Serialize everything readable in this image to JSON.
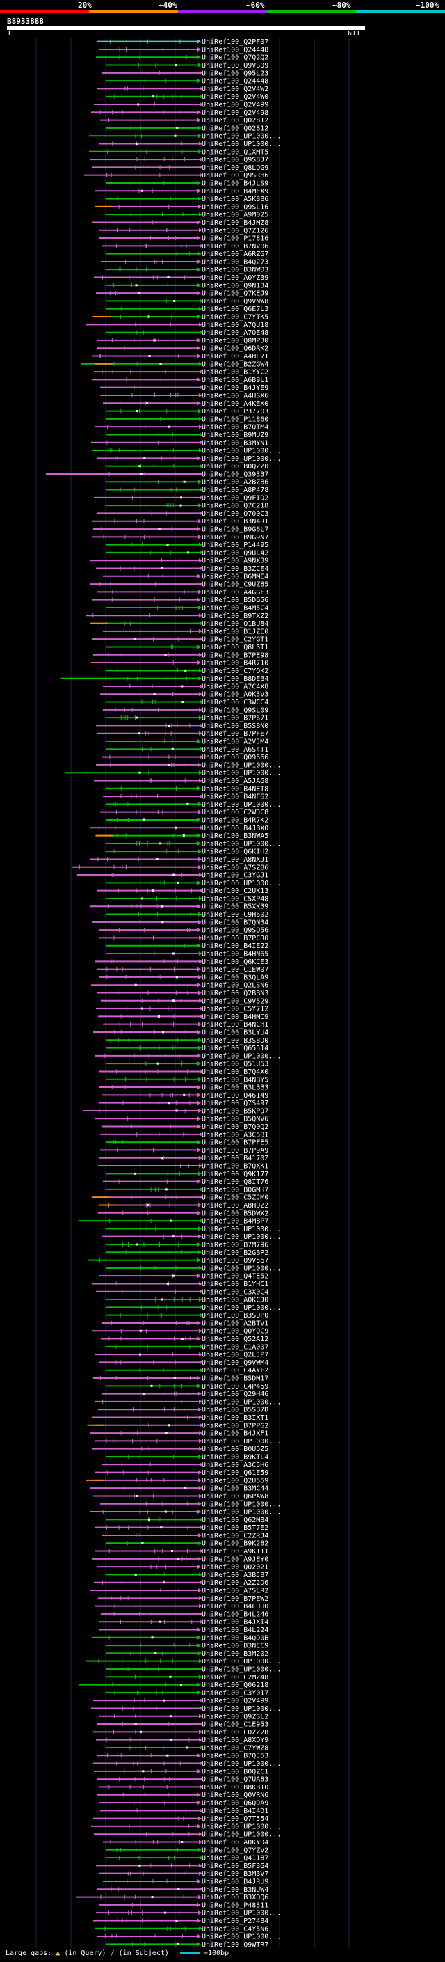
{
  "scale": {
    "ticks": [
      "20%",
      "~40%",
      "~60%",
      "~80%",
      "~100%"
    ],
    "colors": [
      "#ff0000",
      "#ff8c00",
      "#a020f0",
      "#00c000",
      "#00c8c8"
    ]
  },
  "query": {
    "id": "B8933888",
    "start": "1",
    "end": "611"
  },
  "hit_colors": {
    "green": "#00c000",
    "magenta": "#d060d0",
    "cyan": "#40d0d0",
    "orange": "#ff8c00",
    "pink": "#ff80ff"
  },
  "hits": [
    "UniRef100_Q2PF07",
    "UniRef100_Q24448",
    "UniRef100_Q7Q2Q2",
    "UniRef100_Q9VS09",
    "UniRef100_Q95L23",
    "UniRef100_Q24448",
    "UniRef100_Q2V4W2",
    "UniRef100_Q2V4W0",
    "UniRef100_Q2V499",
    "UniRef100_Q2V498",
    "UniRef100_Q02812",
    "UniRef100_Q02812",
    "UniRef100_UP1000...",
    "UniRef100_UP1000...",
    "UniRef100_Q1XMT5",
    "UniRef100_Q9S8J7",
    "UniRef100_Q8LQG9",
    "UniRef100_Q9SRH6",
    "UniRef100_B4JLS9",
    "UniRef100_B4MEX9",
    "UniRef100_A5K8B6",
    "UniRef100_Q9SL16",
    "UniRef100_A9M025",
    "UniRef100_B4JMZ8",
    "UniRef100_Q7Z126",
    "UniRef100_P17816",
    "UniRef100_B7NV06",
    "UniRef100_A6RZG7",
    "UniRef100_B4Q273",
    "UniRef100_B3NWD3",
    "UniRef100_A0YZ39",
    "UniRef100_Q9N134",
    "UniRef100_Q7KEJ9",
    "UniRef100_Q9VNW8",
    "UniRef100_Q6E7L3",
    "UniRef100_C7YTK5",
    "UniRef100_A7QU18",
    "UniRef100_A7QE48",
    "UniRef100_Q8MP30",
    "UniRef100_Q6DRK2",
    "UniRef100_A4HL71",
    "UniRef100_B2ZGW4",
    "UniRef100_B1YYC2",
    "UniRef100_A6B9L1",
    "UniRef100_B4JYE9",
    "UniRef100_A4HSX6",
    "UniRef100_A4KEX0",
    "UniRef100_P37703",
    "UniRef100_P11860",
    "UniRef100_B7QTM4",
    "UniRef100_B9MUZ9",
    "UniRef100_B3MYN1",
    "UniRef100_UP1000...",
    "UniRef100_UP1000...",
    "UniRef100_B0QZZ0",
    "UniRef100_Q39337",
    "UniRef100_A2BZB6",
    "UniRef100_A8P478",
    "UniRef100_Q9FID2",
    "UniRef100_Q7C218",
    "UniRef100_Q700C3",
    "UniRef100_B3N4R1",
    "UniRef100_B9G6L7",
    "UniRef100_B9G9N7",
    "UniRef100_P14495",
    "UniRef100_Q9UL42",
    "UniRef100_A9NX39",
    "UniRef100_B3ZCE4",
    "UniRef100_B6MME4",
    "UniRef100_C9UZ85",
    "UniRef100_A4GGF3",
    "UniRef100_B5DG56",
    "UniRef100_B4M5C4",
    "UniRef100_B9TXZ2",
    "UniRef100_Q1BU84",
    "UniRef100_B1JZE0",
    "UniRef100_C2YGT1",
    "UniRef100_Q8L6T1",
    "UniRef100_B7PE98",
    "UniRef100_B4R710",
    "UniRef100_C7YQK2",
    "UniRef100_B8DEB4",
    "UniRef100_A7C4X8",
    "UniRef100_A0K3V3",
    "UniRef100_C3WCC4",
    "UniRef100_Q9SL09",
    "UniRef100_B7P671",
    "UniRef100_B5S8N0",
    "UniRef100_B7PFE7",
    "UniRef100_A2VJM4",
    "UniRef100_A6S4T1",
    "UniRef100_Q09666",
    "UniRef100_UP1000...",
    "UniRef100_UP1000...",
    "UniRef100_A5JAG8",
    "UniRef100_B4NET8",
    "UniRef100_B4NFG2",
    "UniRef100_UP1000...",
    "UniRef100_C2WDC8",
    "UniRef100_B4R7K2",
    "UniRef100_B4JBX0",
    "UniRef100_B3NWA5",
    "UniRef100_UP1000...",
    "UniRef100_Q6KIH2",
    "UniRef100_A8NXJ1",
    "UniRef100_A7SZ86",
    "UniRef100_C3YGJ1",
    "UniRef100_UP1000...",
    "UniRef100_C2UK13",
    "UniRef100_C5XP48",
    "UniRef100_B5XK39",
    "UniRef100_C9H602",
    "UniRef100_B7QN34",
    "UniRef100_Q9SQ56",
    "UniRef100_B7PCR0",
    "UniRef100_B4IE22",
    "UniRef100_B4HN65",
    "UniRef100_Q6KCE3",
    "UniRef100_C1EW07",
    "UniRef100_B3QLA9",
    "UniRef100_Q2LSN6",
    "UniRef100_Q2BBN3",
    "UniRef100_C9V529",
    "UniRef100_C5Y712",
    "UniRef100_B4HMC9",
    "UniRef100_B4NCH1",
    "UniRef100_B3LYU4",
    "UniRef100_B3S8D0",
    "UniRef100_Q65514",
    "UniRef100_UP1000...",
    "UniRef100_Q51U53",
    "UniRef100_B7Q4X0",
    "UniRef100_B4NBY5",
    "UniRef100_B3LBB3",
    "UniRef100_Q46149",
    "UniRef100_Q7S497",
    "UniRef100_B5KP97",
    "UniRef100_B5QNV6",
    "UniRef100_B7Q0Q2",
    "UniRef100_A3C5B1",
    "UniRef100_B7PFE5",
    "UniRef100_B7P9A9",
    "UniRef100_B4170Z",
    "UniRef100_B7QXK1",
    "UniRef100_Q9K177",
    "UniRef100_Q8IT76",
    "UniRef100_B0GMH7",
    "UniRef100_C5ZJM0",
    "UniRef100_A8HQZ2",
    "UniRef100_B5DWX2",
    "UniRef100_B4MBP7",
    "UniRef100_UP1000...",
    "UniRef100_UP1000...",
    "UniRef100_B7M796",
    "UniRef100_B2GBP2",
    "UniRef100_Q9V567",
    "UniRef100_UP1000...",
    "UniRef100_Q4TE52",
    "UniRef100_B1YHC1",
    "UniRef100_C3X0C4",
    "UniRef100_A0KCJ0",
    "UniRef100_UP1000...",
    "UniRef100_B3SUP0",
    "UniRef100_A2BTV1",
    "UniRef100_Q0YQC9",
    "UniRef100_Q52A12",
    "UniRef100_C1A007",
    "UniRef100_Q2LJP7",
    "UniRef100_Q9VWM4",
    "UniRef100_C4AYF2",
    "UniRef100_B5DM17",
    "UniRef100_C4P459",
    "UniRef100_Q29H46",
    "UniRef100_UP1000...",
    "UniRef100_B5SB7D",
    "UniRef100_B3IXT1",
    "UniRef100_B7PPG2",
    "UniRef100_B4JXF1",
    "UniRef100_UP1000...",
    "UniRef100_B0UDZ5",
    "UniRef100_B9KTL4",
    "UniRef100_A3C5H6",
    "UniRef100_Q61E59",
    "UniRef100_Q2U559",
    "UniRef100_B3MC44",
    "UniRef100_Q6PAW8",
    "UniRef100_UP1000...",
    "UniRef100_UP1000...",
    "UniRef100_Q62M84",
    "UniRef100_B5T7E2",
    "UniRef100_C2ZRJ4",
    "UniRef100_B9K282",
    "UniRef100_A9K111",
    "UniRef100_A9JEY0",
    "UniRef100_Q02021",
    "UniRef100_A3BJB7",
    "UniRef100_A2Z2D6",
    "UniRef100_A7SLR2",
    "UniRef100_B7PEW2",
    "UniRef100_B4LUU0",
    "UniRef100_B4L246",
    "UniRef100_B4JXI4",
    "UniRef100_B4L224",
    "UniRef100_B4QD0B",
    "UniRef100_B3NEC9",
    "UniRef100_B3M202",
    "UniRef100_UP1000...",
    "UniRef100_UP1000...",
    "UniRef100_C2MZ48",
    "UniRef100_Q06218",
    "UniRef100_C3Y017",
    "UniRef100_Q2V499",
    "UniRef100_UP1000...",
    "UniRef100_Q9ZSL2",
    "UniRef100_C1E953",
    "UniRef100_C0ZZ28",
    "UniRef100_A8XDY9",
    "UniRef100_C7YWZ8",
    "UniRef100_B7QJ53",
    "UniRef100_UP1000...",
    "UniRef100_B0QZC1",
    "UniRef100_Q7UA83",
    "UniRef100_B8KB10",
    "UniRef100_Q0VRN6",
    "UniRef100_Q6QDA9",
    "UniRef100_B4I4D1",
    "UniRef100_Q7T554",
    "UniRef100_UP1000...",
    "UniRef100_UP1000...",
    "UniRef100_A0KYD4",
    "UniRef100_Q7YZV2",
    "UniRef100_Q41187",
    "UniRef100_B5F3G4",
    "UniRef100_B3M3V7",
    "UniRef100_B4JRU9",
    "UniRef100_B3NUW4",
    "UniRef100_B3XQQ6",
    "UniRef100_P48311",
    "UniRef100_UP1000...",
    "UniRef100_P27484",
    "UniRef100_C4Y5N6",
    "UniRef100_UP1000...",
    "UniRef100_Q9WTR7"
  ],
  "legend": {
    "large_gaps_label": "Large gaps:",
    "in_query_label": "(in Query)",
    "in_subject_label": "(in Subject)",
    "scale_label": "=100bp"
  }
}
